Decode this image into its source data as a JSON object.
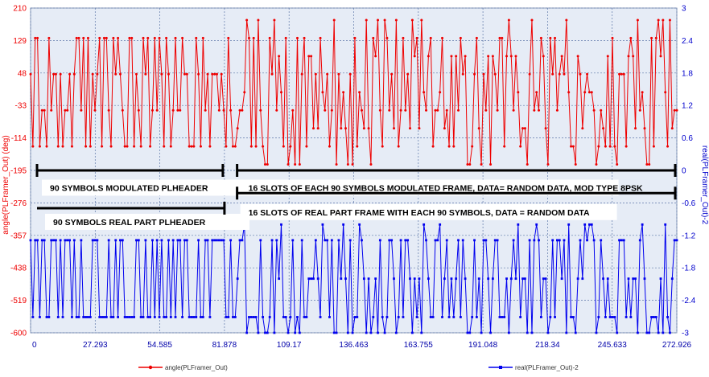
{
  "chart_data": {
    "type": "line",
    "x": {
      "ticks": [
        0,
        27.293,
        54.585,
        81.878,
        109.17,
        136.463,
        163.755,
        191.048,
        218.34,
        245.633,
        272.926
      ],
      "tick_labels": [
        "0",
        "27.293",
        "54.585",
        "81.878",
        "109.17",
        "136.463",
        "163.755",
        "191.048",
        "218.34",
        "245.633",
        "272.926"
      ],
      "lim": [
        0,
        272.926
      ]
    },
    "y_left": {
      "label": "angle(PLFramer_Out) (deg)",
      "ticks": [
        210,
        129,
        48,
        -33,
        -114,
        -195,
        -276,
        -357,
        -438,
        -519,
        -600
      ],
      "tick_labels": [
        "210",
        "129",
        "48",
        "-33",
        "-114",
        "-195",
        "-276",
        "-357",
        "-438",
        "-519",
        "-600"
      ],
      "lim": [
        -600,
        210
      ]
    },
    "y_right": {
      "label": "real(PLFramer_Out)-2",
      "ticks": [
        3,
        2.4,
        1.8,
        1.2,
        0.6,
        0,
        -0.6,
        -1.2,
        -1.8,
        -2.4,
        -3
      ],
      "tick_labels": [
        "3",
        "2.4",
        "1.8",
        "1.2",
        "0.6",
        "0",
        "-0.6",
        "-1.2",
        "-1.8",
        "-2.4",
        "-3"
      ],
      "lim": [
        -3,
        3
      ]
    },
    "grid": true,
    "legend_position": "bottom",
    "series": [
      {
        "name": "angle(PLFramer_Out)",
        "axis": "left",
        "color": "#ee0000",
        "marker": "circle",
        "values": [
          45,
          -135,
          135,
          135,
          -135,
          -45,
          -45,
          -135,
          135,
          -45,
          45,
          45,
          -135,
          45,
          -135,
          -45,
          -45,
          45,
          -135,
          45,
          135,
          135,
          -45,
          135,
          -135,
          135,
          -135,
          45,
          -45,
          45,
          135,
          -135,
          135,
          135,
          -45,
          -135,
          135,
          45,
          135,
          45,
          -45,
          -135,
          -135,
          135,
          135,
          -135,
          45,
          -45,
          -135,
          135,
          45,
          135,
          -135,
          -45,
          135,
          -45,
          135,
          45,
          -135,
          135,
          45,
          -135,
          -45,
          135,
          -45,
          -45,
          135,
          45,
          45,
          -135,
          -135,
          -135,
          135,
          45,
          -135,
          135,
          -45,
          45,
          -135,
          45,
          45,
          45,
          -45,
          45,
          -45,
          -135,
          135,
          -45,
          -135,
          -135,
          -90,
          -45,
          -45,
          0,
          180,
          135,
          -135,
          135,
          -135,
          180,
          -45,
          -135,
          -180,
          -180,
          135,
          45,
          180,
          -45,
          90,
          0,
          -135,
          135,
          -180,
          -135,
          -45,
          -180,
          135,
          -180,
          45,
          135,
          -135,
          90,
          90,
          -90,
          45,
          -90,
          135,
          0,
          -45,
          45,
          -135,
          -45,
          180,
          -180,
          45,
          -90,
          0,
          -90,
          -180,
          45,
          -180,
          135,
          -135,
          0,
          -45,
          -90,
          180,
          -90,
          -180,
          135,
          90,
          180,
          -45,
          -135,
          180,
          135,
          -45,
          45,
          -90,
          180,
          -135,
          -45,
          135,
          -45,
          45,
          -90,
          180,
          90,
          135,
          -90,
          180,
          0,
          -45,
          90,
          135,
          -135,
          -45,
          -45,
          0,
          135,
          -90,
          -45,
          -135,
          90,
          -135,
          90,
          -45,
          135,
          45,
          90,
          -180,
          -180,
          -135,
          45,
          135,
          -90,
          -180,
          45,
          -45,
          90,
          -180,
          90,
          45,
          -45,
          135,
          135,
          -135,
          90,
          180,
          90,
          -45,
          90,
          0,
          -135,
          -90,
          -90,
          -180,
          45,
          180,
          -45,
          0,
          -45,
          135,
          90,
          -90,
          -180,
          135,
          45,
          135,
          -45,
          45,
          90,
          45,
          180,
          0,
          -135,
          -135,
          -180,
          90,
          45,
          -90,
          0,
          45,
          0,
          0,
          -45,
          -180,
          -135,
          -45,
          -90,
          -135,
          90,
          -135,
          135,
          -135,
          -180,
          45,
          45,
          45,
          -135,
          90,
          135,
          90,
          -90,
          180,
          -45,
          0,
          -90,
          -180,
          -180,
          135,
          -135,
          135,
          180,
          90,
          180,
          0,
          -135,
          180,
          -90,
          -45,
          -45
        ]
      },
      {
        "name": "real(PLFramer_Out)-2",
        "axis": "right",
        "color": "#0000ee",
        "marker": "square",
        "values": [
          -1.29,
          -2.71,
          -1.29,
          -1.29,
          -2.71,
          -1.29,
          -1.29,
          -2.71,
          -2.71,
          -1.29,
          -1.29,
          -1.29,
          -2.71,
          -1.29,
          -2.71,
          -1.29,
          -1.29,
          -1.29,
          -2.71,
          -1.29,
          -2.71,
          -2.71,
          -1.29,
          -2.71,
          -2.71,
          -2.71,
          -2.71,
          -1.29,
          -1.29,
          -1.29,
          -2.71,
          -2.71,
          -2.71,
          -2.71,
          -1.29,
          -2.71,
          -2.71,
          -1.29,
          -2.71,
          -1.29,
          -1.29,
          -2.71,
          -2.71,
          -2.71,
          -2.71,
          -2.71,
          -1.29,
          -1.29,
          -2.71,
          -2.71,
          -1.29,
          -2.71,
          -2.71,
          -1.29,
          -2.71,
          -1.29,
          -2.71,
          -1.29,
          -2.71,
          -2.71,
          -1.29,
          -2.71,
          -1.29,
          -2.71,
          -1.29,
          -1.29,
          -2.71,
          -1.29,
          -1.29,
          -2.71,
          -2.71,
          -2.71,
          -2.71,
          -1.29,
          -2.71,
          -2.71,
          -1.29,
          -1.29,
          -2.71,
          -1.29,
          -1.29,
          -1.29,
          -1.29,
          -1.29,
          -1.29,
          -2.71,
          -2.71,
          -1.29,
          -2.71,
          -2.71,
          -2,
          -1.29,
          -1.29,
          -1,
          -3,
          -2.71,
          -2.71,
          -2.71,
          -2.71,
          -3,
          -1.29,
          -2.71,
          -3,
          -3,
          -2.71,
          -1.29,
          -3,
          -1.29,
          -2,
          -1,
          -2.71,
          -2.71,
          -3,
          -2.71,
          -1.29,
          -3,
          -2.71,
          -3,
          -1.29,
          -2.71,
          -2.71,
          -2,
          -2,
          -2,
          -1.29,
          -2,
          -2.71,
          -1,
          -1.29,
          -1.29,
          -2.71,
          -1.29,
          -3,
          -3,
          -1.29,
          -2,
          -1,
          -2,
          -3,
          -1.29,
          -3,
          -2.71,
          -2.71,
          -1,
          -1.29,
          -2,
          -3,
          -2,
          -3,
          -2.71,
          -2,
          -3,
          -1.29,
          -2.71,
          -3,
          -2.71,
          -1.29,
          -1.29,
          -2,
          -3,
          -2.71,
          -1.29,
          -2.71,
          -1.29,
          -1.29,
          -2,
          -3,
          -2,
          -2.71,
          -2,
          -3,
          -1,
          -1.29,
          -2,
          -2.71,
          -2.71,
          -1.29,
          -1.29,
          -1,
          -2.71,
          -2,
          -1.29,
          -2.71,
          -2,
          -2.71,
          -2,
          -1.29,
          -2.71,
          -1.29,
          -2,
          -3,
          -3,
          -2.71,
          -1.29,
          -2.71,
          -2,
          -3,
          -1.29,
          -1.29,
          -2,
          -3,
          -2,
          -1.29,
          -1.29,
          -2.71,
          -2.71,
          -2.71,
          -2,
          -3,
          -2,
          -1.29,
          -2,
          -1,
          -2.71,
          -2,
          -2,
          -3,
          -1.29,
          -3,
          -1.29,
          -1,
          -1.29,
          -2.71,
          -2,
          -2,
          -3,
          -2.71,
          -1.29,
          -2.71,
          -1.29,
          -1.29,
          -2,
          -1.29,
          -3,
          -1,
          -2.71,
          -2.71,
          -3,
          -2,
          -1.29,
          -2,
          -1,
          -1.29,
          -1,
          -1,
          -1.29,
          -3,
          -2.71,
          -1.29,
          -2,
          -2.71,
          -2,
          -2.71,
          -2.71,
          -2.71,
          -3,
          -1.29,
          -1.29,
          -1.29,
          -2.71,
          -2,
          -2.71,
          -2,
          -2,
          -3,
          -1.29,
          -1,
          -2,
          -3,
          -3,
          -2.71,
          -2.71,
          -2.71,
          -3,
          -2,
          -3,
          -1,
          -2.71,
          -3,
          -2,
          -1.29,
          -1.29
        ]
      }
    ],
    "annotations": [
      {
        "id": "header-mod",
        "text": "90 SYMBOLS MODULATED PLHEADER",
        "bracket_x": [
          0,
          81.878
        ],
        "bracket_y_right": 0,
        "label_y_right": -0.2
      },
      {
        "id": "frame-mod",
        "text": "16 SLOTS OF EACH 90 SYMBOLS MODULATED FRAME, DATA= RANDOM DATA, MOD TYPE 8PSK",
        "bracket_x": [
          84.5,
          272.926
        ],
        "bracket_y_right": 0,
        "label_y_right": -0.2
      },
      {
        "id": "frame-real",
        "text": "16 SLOTS OF REAL PART FRAME WITH EACH 90 SYMBOLS, DATA = RANDOM DATA",
        "bracket_x": [
          84.5,
          272.926
        ],
        "bracket_y_right": -0.42,
        "label_y_right": -0.65
      },
      {
        "id": "header-real",
        "text": "90 SYMBOLS REAL PART PLHEADER",
        "bracket_x": [
          0,
          81.878
        ],
        "bracket_y_right": -0.95,
        "label_y_right": -0.95
      }
    ]
  }
}
